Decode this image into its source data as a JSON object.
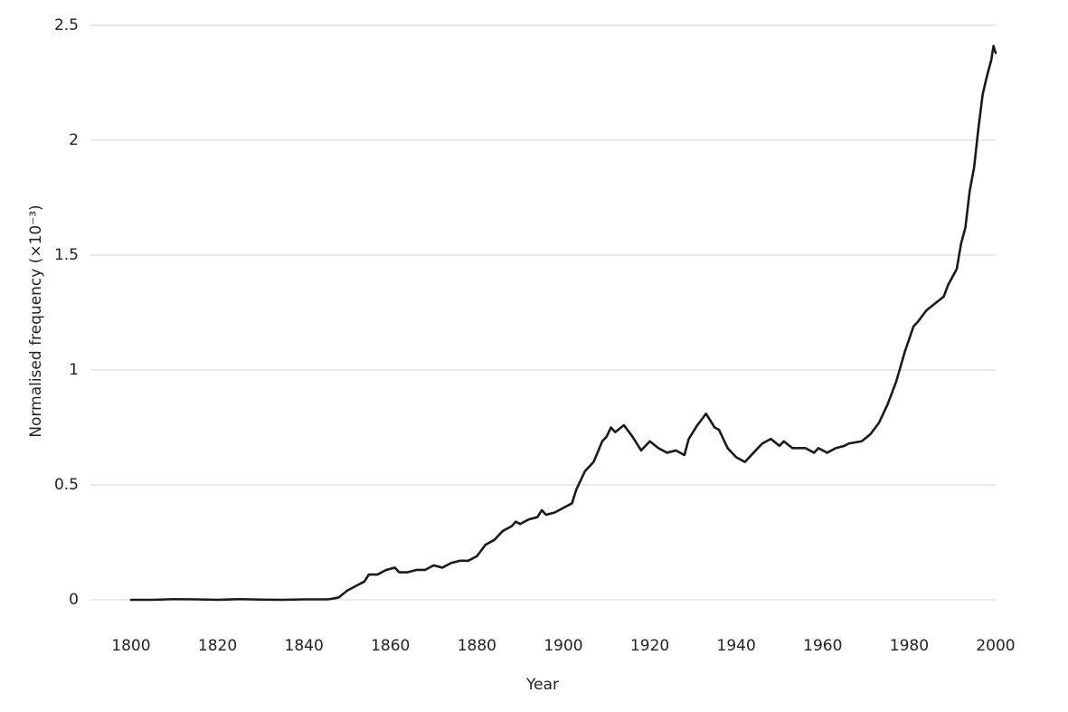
{
  "chart_data": {
    "type": "line",
    "x_label": "Year",
    "y_label": "Normalised frequency (×10⁻³)",
    "x": [
      1800,
      1805,
      1810,
      1815,
      1820,
      1825,
      1830,
      1835,
      1840,
      1845,
      1846,
      1848,
      1850,
      1852,
      1854,
      1855,
      1857,
      1859,
      1861,
      1862,
      1864,
      1866,
      1868,
      1870,
      1872,
      1874,
      1876,
      1878,
      1880,
      1882,
      1884,
      1886,
      1888,
      1889,
      1890,
      1892,
      1894,
      1895,
      1896,
      1898,
      1900,
      1902,
      1903,
      1905,
      1907,
      1909,
      1910,
      1911,
      1912,
      1914,
      1916,
      1918,
      1920,
      1922,
      1924,
      1926,
      1928,
      1929,
      1931,
      1933,
      1935,
      1936,
      1938,
      1940,
      1942,
      1944,
      1946,
      1948,
      1950,
      1951,
      1953,
      1956,
      1958,
      1959,
      1961,
      1963,
      1965,
      1966,
      1969,
      1971,
      1973,
      1975,
      1977,
      1979,
      1981,
      1982,
      1984,
      1986,
      1988,
      1989,
      1991,
      1992,
      1993,
      1994,
      1995,
      1996,
      1997,
      1998,
      1999,
      1999.5,
      2000
    ],
    "series": [
      {
        "name": "frequency",
        "color": "#1a1a1a",
        "values": [
          0,
          0,
          0.003,
          0.002,
          0,
          0.003,
          0.001,
          0,
          0.002,
          0.002,
          0.003,
          0.01,
          0.04,
          0.06,
          0.08,
          0.11,
          0.11,
          0.13,
          0.14,
          0.12,
          0.12,
          0.13,
          0.13,
          0.15,
          0.14,
          0.16,
          0.17,
          0.17,
          0.19,
          0.24,
          0.26,
          0.3,
          0.32,
          0.34,
          0.33,
          0.35,
          0.36,
          0.39,
          0.37,
          0.38,
          0.4,
          0.42,
          0.48,
          0.56,
          0.6,
          0.69,
          0.71,
          0.75,
          0.73,
          0.76,
          0.71,
          0.65,
          0.69,
          0.66,
          0.64,
          0.65,
          0.63,
          0.7,
          0.76,
          0.81,
          0.75,
          0.74,
          0.66,
          0.62,
          0.6,
          0.64,
          0.68,
          0.7,
          0.67,
          0.69,
          0.66,
          0.66,
          0.64,
          0.66,
          0.64,
          0.66,
          0.67,
          0.68,
          0.69,
          0.72,
          0.77,
          0.85,
          0.95,
          1.08,
          1.19,
          1.21,
          1.26,
          1.29,
          1.32,
          1.37,
          1.44,
          1.55,
          1.62,
          1.78,
          1.88,
          2.05,
          2.2,
          2.28,
          2.35,
          2.41,
          2.38
        ]
      }
    ],
    "xlim": [
      1790.6,
      2000
    ],
    "xticks": [
      1800,
      1820,
      1840,
      1860,
      1880,
      1900,
      1920,
      1940,
      1960,
      1980,
      2000
    ],
    "ylim": [
      0,
      2.5
    ],
    "yticks": [
      0,
      0.5,
      1,
      1.5,
      2,
      2.5
    ],
    "grid": true
  }
}
